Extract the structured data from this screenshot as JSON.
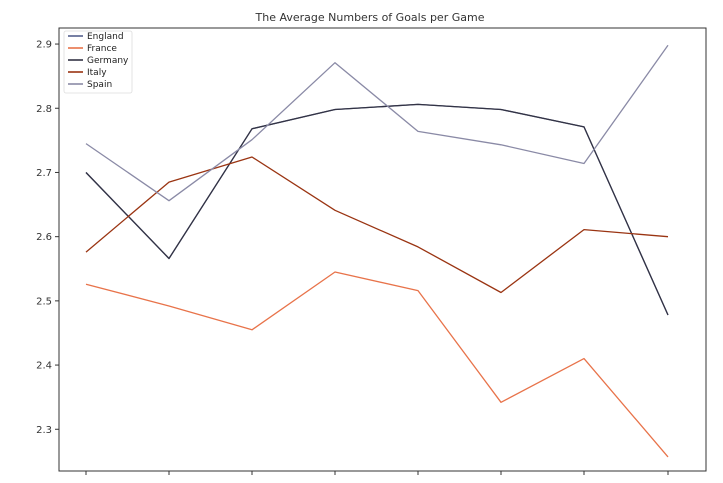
{
  "chart_data": {
    "type": "line",
    "title": "The Average Numbers of  Goals per Game",
    "xlabel": "",
    "ylabel": "",
    "x_count": 8,
    "ylim": [
      2.235,
      2.925
    ],
    "yticks": [
      2.3,
      2.4,
      2.5,
      2.6,
      2.7,
      2.8,
      2.9
    ],
    "ytick_labels": [
      "2.3",
      "2.4",
      "2.5",
      "2.6",
      "2.7",
      "2.8",
      "2.9"
    ],
    "grid": false,
    "legend_position": "top-left",
    "series": [
      {
        "name": "England",
        "color": "#55618d",
        "values": [
          2.7,
          2.566,
          2.768,
          2.798,
          2.806,
          2.798,
          2.771,
          2.478
        ]
      },
      {
        "name": "France",
        "color": "#e8734a",
        "values": [
          2.526,
          2.492,
          2.455,
          2.545,
          2.516,
          2.342,
          2.41,
          2.257
        ]
      },
      {
        "name": "Germany",
        "color": "#333344",
        "values": [
          2.7,
          2.566,
          2.768,
          2.798,
          2.806,
          2.798,
          2.771,
          2.478
        ]
      },
      {
        "name": "Italy",
        "color": "#9a3412",
        "values": [
          2.576,
          2.685,
          2.724,
          2.641,
          2.584,
          2.513,
          2.611,
          2.6
        ]
      },
      {
        "name": "Spain",
        "color": "#8a8aa6",
        "values": [
          2.745,
          2.656,
          2.751,
          2.871,
          2.764,
          2.743,
          2.714,
          2.898
        ]
      }
    ]
  }
}
